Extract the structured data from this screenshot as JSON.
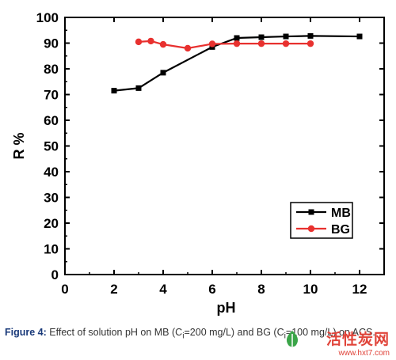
{
  "chart_data": {
    "type": "line",
    "xlabel": "pH",
    "ylabel": "R %",
    "xlim": [
      0,
      13
    ],
    "ylim": [
      0,
      100
    ],
    "x_ticks": [
      "0",
      "2",
      "4",
      "6",
      "8",
      "10",
      "12"
    ],
    "y_ticks": [
      "0",
      "10",
      "20",
      "30",
      "40",
      "50",
      "60",
      "70",
      "80",
      "90",
      "100"
    ],
    "legend_position": "lower-right",
    "series": [
      {
        "name": "MB",
        "color": "#000000",
        "marker": "square",
        "points": [
          [
            2,
            71.5
          ],
          [
            3,
            72.5
          ],
          [
            4,
            78.5
          ],
          [
            6,
            88.5
          ],
          [
            7,
            92
          ],
          [
            8,
            92.3
          ],
          [
            9,
            92.6
          ],
          [
            10,
            92.8
          ],
          [
            12,
            92.6
          ]
        ]
      },
      {
        "name": "BG",
        "color": "#e8312f",
        "marker": "circle",
        "points": [
          [
            3,
            90.5
          ],
          [
            3.5,
            90.8
          ],
          [
            4,
            89.5
          ],
          [
            5,
            88
          ],
          [
            6,
            89.7
          ],
          [
            7,
            89.8
          ],
          [
            8,
            89.8
          ],
          [
            9,
            89.8
          ],
          [
            10,
            89.8
          ]
        ]
      }
    ]
  },
  "caption": {
    "label": "Figure 4:",
    "text": "Effect of solution pH on MB (C",
    "sub1": "i",
    "text2": "=200 mg/L) and BG (C",
    "sub2": "i",
    "text3": "=100 mg/L) on ACS."
  },
  "watermark": {
    "title": "活性炭网",
    "url": "www.hxt7.com"
  }
}
